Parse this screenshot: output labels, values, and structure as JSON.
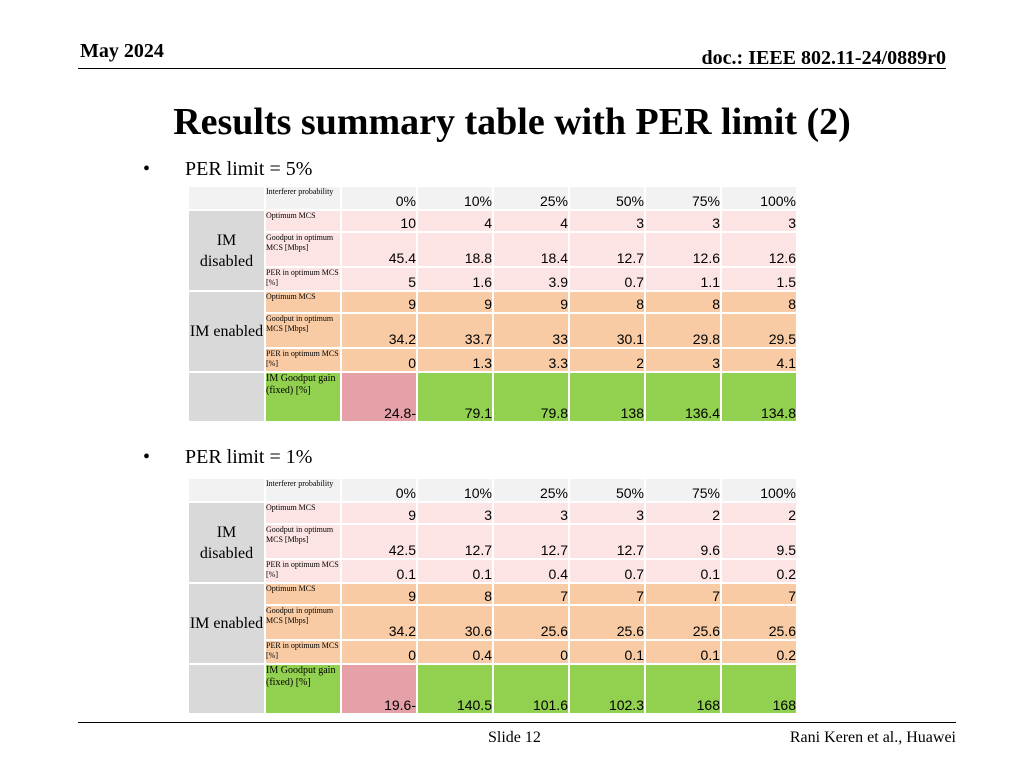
{
  "header": {
    "date": "May 2024",
    "doc": "doc.: IEEE 802.11-24/0889r0"
  },
  "title": "Results summary table with PER limit (2)",
  "tables": [
    {
      "bullet": "PER limit = 5%",
      "header_label": "Interferer probability",
      "columns": [
        "0%",
        "10%",
        "25%",
        "50%",
        "75%",
        "100%"
      ],
      "im_disabled": {
        "label": "IM disabled",
        "rows": [
          {
            "label": "Optimum MCS",
            "values": [
              "10",
              "4",
              "4",
              "3",
              "3",
              "3"
            ]
          },
          {
            "label": "Goodput in optimum MCS [Mbps]",
            "values": [
              "45.4",
              "18.8",
              "18.4",
              "12.7",
              "12.6",
              "12.6"
            ]
          },
          {
            "label": "PER in optimum MCS [%]",
            "values": [
              "5",
              "1.6",
              "3.9",
              "0.7",
              "1.1",
              "1.5"
            ]
          }
        ]
      },
      "im_enabled": {
        "label": "IM enabled",
        "rows": [
          {
            "label": "Optimum MCS",
            "values": [
              "9",
              "9",
              "9",
              "8",
              "8",
              "8"
            ]
          },
          {
            "label": "Goodput in optimum MCS [Mbps]",
            "values": [
              "34.2",
              "33.7",
              "33",
              "30.1",
              "29.8",
              "29.5"
            ]
          },
          {
            "label": "PER in optimum MCS [%]",
            "values": [
              "0",
              "1.3",
              "3.3",
              "2",
              "3",
              "4.1"
            ]
          }
        ]
      },
      "gain": {
        "label": "IM Goodput gain (fixed) [%]",
        "values": [
          "24.8-",
          "79.1",
          "79.8",
          "138",
          "136.4",
          "134.8"
        ]
      }
    },
    {
      "bullet": "PER limit = 1%",
      "header_label": "Interferer probability",
      "columns": [
        "0%",
        "10%",
        "25%",
        "50%",
        "75%",
        "100%"
      ],
      "im_disabled": {
        "label": "IM disabled",
        "rows": [
          {
            "label": "Optimum MCS",
            "values": [
              "9",
              "3",
              "3",
              "3",
              "2",
              "2"
            ]
          },
          {
            "label": "Goodput in optimum MCS [Mbps]",
            "values": [
              "42.5",
              "12.7",
              "12.7",
              "12.7",
              "9.6",
              "9.5"
            ]
          },
          {
            "label": "PER in optimum MCS [%]",
            "values": [
              "0.1",
              "0.1",
              "0.4",
              "0.7",
              "0.1",
              "0.2"
            ]
          }
        ]
      },
      "im_enabled": {
        "label": "IM enabled",
        "rows": [
          {
            "label": "Optimum MCS",
            "values": [
              "9",
              "8",
              "7",
              "7",
              "7",
              "7"
            ]
          },
          {
            "label": "Goodput in optimum MCS [Mbps]",
            "values": [
              "34.2",
              "30.6",
              "25.6",
              "25.6",
              "25.6",
              "25.6"
            ]
          },
          {
            "label": "PER in optimum MCS [%]",
            "values": [
              "0",
              "0.4",
              "0",
              "0.1",
              "0.1",
              "0.2"
            ]
          }
        ]
      },
      "gain": {
        "label": "IM Goodput gain (fixed) [%]",
        "values": [
          "19.6-",
          "140.5",
          "101.6",
          "102.3",
          "168",
          "168"
        ]
      }
    }
  ],
  "footer": {
    "slide": "Slide 12",
    "author": "Rani Keren et al., Huawei"
  }
}
